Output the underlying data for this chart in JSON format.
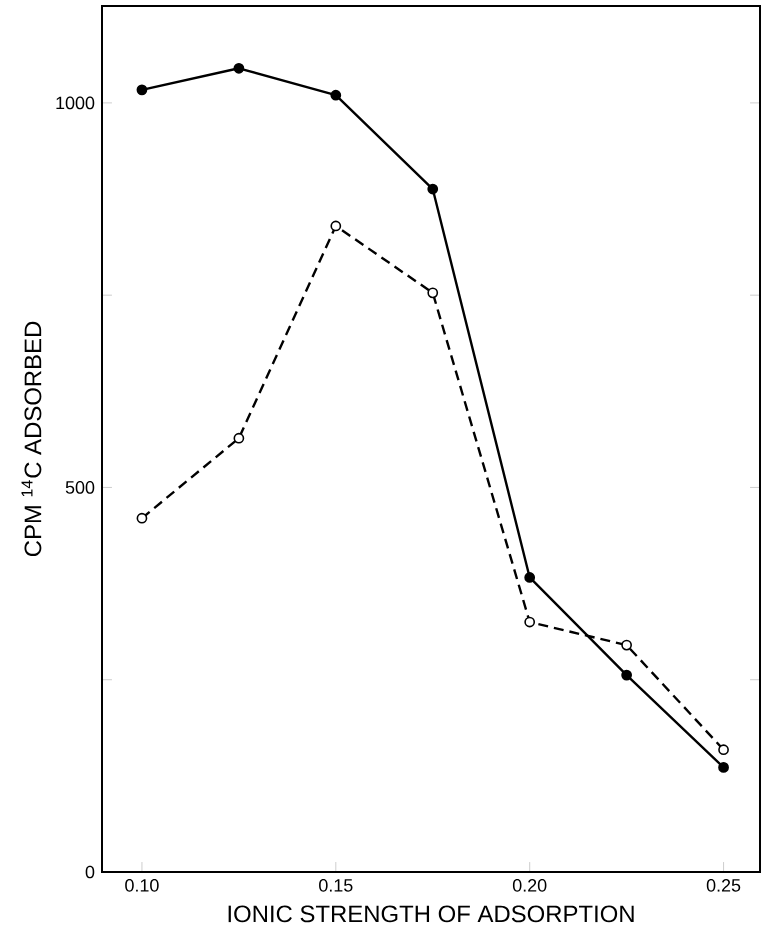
{
  "chart_data": {
    "type": "line",
    "xlabel": "IONIC STRENGTH OF ADSORPTION",
    "ylabel": "CPM $^{14}$C ADSORBED",
    "x": [
      0.1,
      0.125,
      0.15,
      0.175,
      0.2,
      0.225,
      0.25
    ],
    "series": [
      {
        "color": "#000000",
        "line_style": "solid",
        "marker": "circle",
        "values": [
          1017,
          1045,
          1010,
          888,
          383,
          256,
          136
        ]
      },
      {
        "color": "#000000",
        "line_style": "dashed",
        "marker": "circle",
        "values": [
          460,
          564,
          840,
          753,
          325,
          295,
          159
        ]
      }
    ],
    "xlim": [
      0.0897,
      0.2594
    ],
    "ylim": [
      0,
      1126
    ],
    "xticks": [
      {
        "value": 0.1,
        "label": "0.10"
      },
      {
        "value": 0.15,
        "label": "0.15"
      },
      {
        "value": 0.2,
        "label": "0.20"
      },
      {
        "value": 0.25,
        "label": "0.25"
      }
    ],
    "yticks": [
      0,
      {
        "value": 250,
        "label": null
      },
      500,
      {
        "value": 750,
        "label": null
      },
      1000
    ]
  }
}
